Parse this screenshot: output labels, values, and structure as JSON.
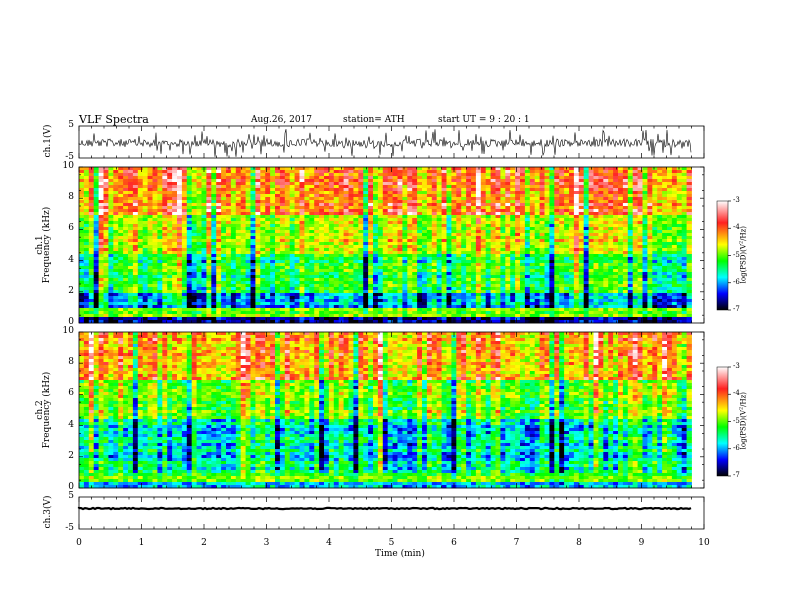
{
  "header": {
    "title": "VLF  Spectra",
    "date": "Aug.26, 2017",
    "station": "station= ATH",
    "start": "start  UT  =    9  : 20 : 1"
  },
  "panels": {
    "ch1_wave": {
      "ylabel": "ch.1(V)",
      "yticks": [
        "5",
        "-5"
      ]
    },
    "ch1_spec": {
      "ylabel_top": "ch.1",
      "ylabel_bottom": "Frequency  (kHz)",
      "yticks": [
        "10",
        "8",
        "6",
        "4",
        "2",
        "0"
      ]
    },
    "ch2_spec": {
      "ylabel_top": "ch.2",
      "ylabel_bottom": "Frequency  (kHz)",
      "yticks": [
        "10",
        "8",
        "6",
        "4",
        "2",
        "0"
      ]
    },
    "ch3_wave": {
      "ylabel": "ch.3(V)",
      "yticks": [
        "5",
        "-5"
      ]
    }
  },
  "colorbar": {
    "label": "log(PSD)(V²/Hz)",
    "ticks": [
      "-3",
      "-4",
      "-5",
      "-6",
      "-7"
    ],
    "colors": [
      "#ffffff",
      "#ff2020",
      "#ffff00",
      "#00ff00",
      "#00ffff",
      "#0000ff",
      "#000000"
    ]
  },
  "xaxis": {
    "label": "Time  (min)",
    "ticks": [
      "0",
      "1",
      "2",
      "3",
      "4",
      "5",
      "6",
      "7",
      "8",
      "9",
      "10"
    ]
  },
  "chart_data": [
    {
      "type": "line",
      "panel": "ch.1 waveform",
      "ylabel": "ch.1(V)",
      "ylim": [
        -5,
        5
      ],
      "x_range_min": [
        0,
        9.8
      ],
      "description_values": "broadband noise centered near 0 V with sferic spikes reaching about ±5 V"
    },
    {
      "type": "heatmap",
      "panel": "ch.1 spectrogram",
      "xlabel": "Time  (min)",
      "ylabel": "Frequency  (kHz)",
      "xlim": [
        0,
        10
      ],
      "ylim": [
        0,
        10
      ],
      "zlabel": "log(PSD)(V²/Hz)",
      "zlim": [
        -7,
        -3
      ],
      "band_levels_kHz": [
        {
          "f_lo": 0,
          "f_hi": 0.4,
          "level": -6.5
        },
        {
          "f_lo": 0.4,
          "f_hi": 1.0,
          "level": -4.8
        },
        {
          "f_lo": 1.0,
          "f_hi": 2.0,
          "level": -6.0
        },
        {
          "f_lo": 2.0,
          "f_hi": 4.5,
          "level": -5.2
        },
        {
          "f_lo": 4.5,
          "f_hi": 7.0,
          "level": -4.5
        },
        {
          "f_lo": 7.0,
          "f_hi": 10.0,
          "level": -3.9
        }
      ]
    },
    {
      "type": "heatmap",
      "panel": "ch.2 spectrogram",
      "xlabel": "Time  (min)",
      "ylabel": "Frequency  (kHz)",
      "xlim": [
        0,
        10
      ],
      "ylim": [
        0,
        10
      ],
      "zlabel": "log(PSD)(V²/Hz)",
      "zlim": [
        -7,
        -3
      ],
      "band_levels_kHz": [
        {
          "f_lo": 0,
          "f_hi": 0.4,
          "level": -6.0
        },
        {
          "f_lo": 0.4,
          "f_hi": 1.0,
          "level": -5.0
        },
        {
          "f_lo": 1.0,
          "f_hi": 2.0,
          "level": -5.5
        },
        {
          "f_lo": 2.0,
          "f_hi": 4.5,
          "level": -5.6
        },
        {
          "f_lo": 4.5,
          "f_hi": 7.0,
          "level": -4.8
        },
        {
          "f_lo": 7.0,
          "f_hi": 10.0,
          "level": -4.0
        }
      ]
    },
    {
      "type": "line",
      "panel": "ch.3 waveform",
      "ylabel": "ch.3(V)",
      "ylim": [
        -5,
        5
      ],
      "x_range_min": [
        0,
        9.8
      ],
      "description_values": "nearly flat signal near -1 V"
    }
  ]
}
